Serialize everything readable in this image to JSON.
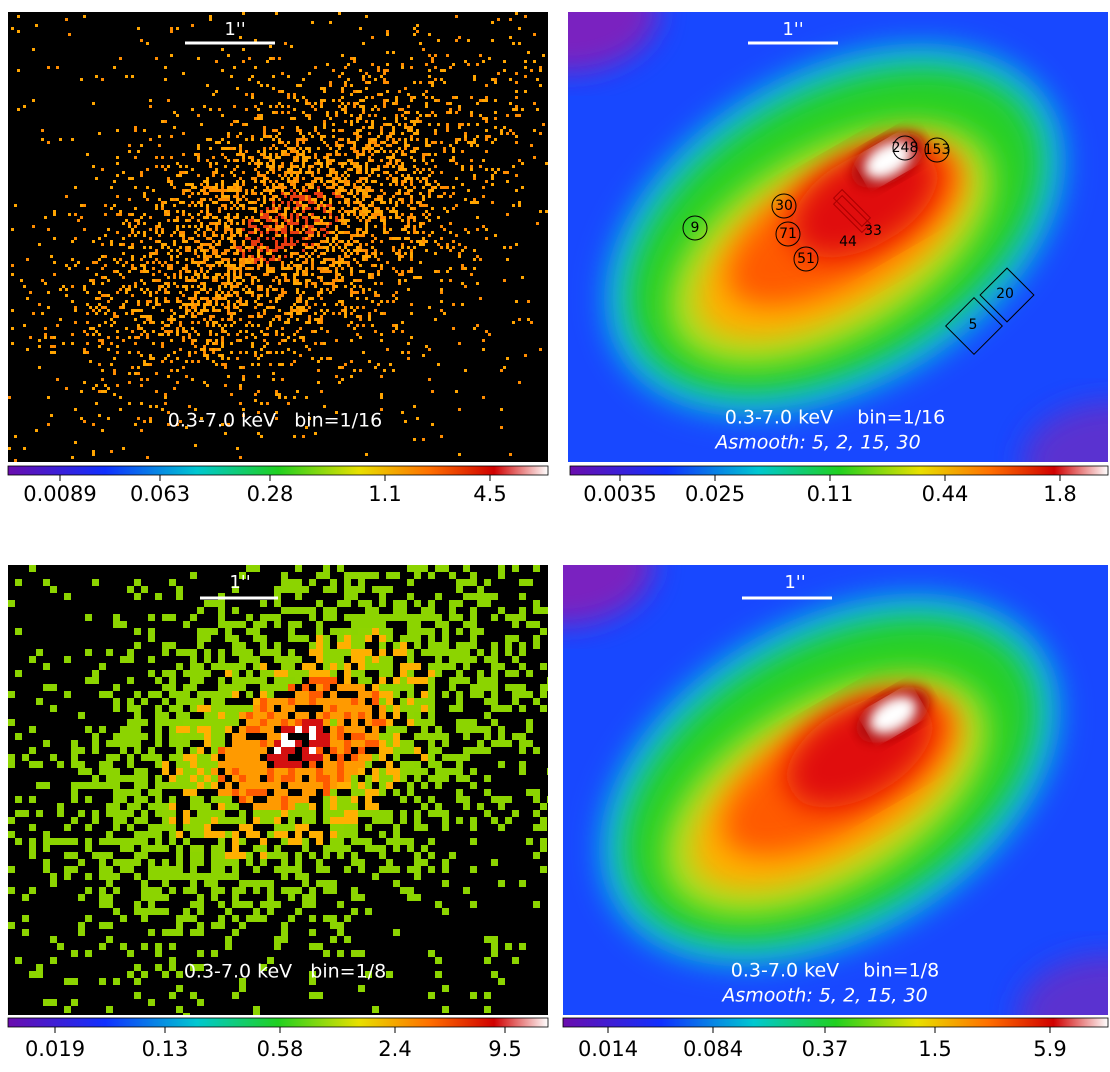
{
  "panels": [
    {
      "scale_bar": "1''",
      "caption": "0.3-7.0 keV   bin=1/16",
      "colorbar_ticks": [
        "0.0089",
        "0.063",
        "0.28",
        "1.1",
        "4.5"
      ]
    },
    {
      "scale_bar": "1''",
      "caption": "0.3-7.0 keV    bin=1/16",
      "subcaption": "Asmooth: 5, 2, 15, 30",
      "colorbar_ticks": [
        "0.0035",
        "0.025",
        "0.11",
        "0.44",
        "1.8"
      ],
      "regions": [
        "248",
        "153",
        "9",
        "30",
        "71",
        "44",
        "33",
        "51",
        "20",
        "5"
      ]
    },
    {
      "scale_bar": "1''",
      "caption": "0.3-7.0 keV   bin=1/8",
      "colorbar_ticks": [
        "0.019",
        "0.13",
        "0.58",
        "2.4",
        "9.5"
      ]
    },
    {
      "scale_bar": "1''",
      "caption": "0.3-7.0 keV    bin=1/8",
      "subcaption": "Asmooth: 5, 2, 15, 30",
      "colorbar_ticks": [
        "0.014",
        "0.084",
        "0.37",
        "1.5",
        "5.9"
      ]
    }
  ]
}
